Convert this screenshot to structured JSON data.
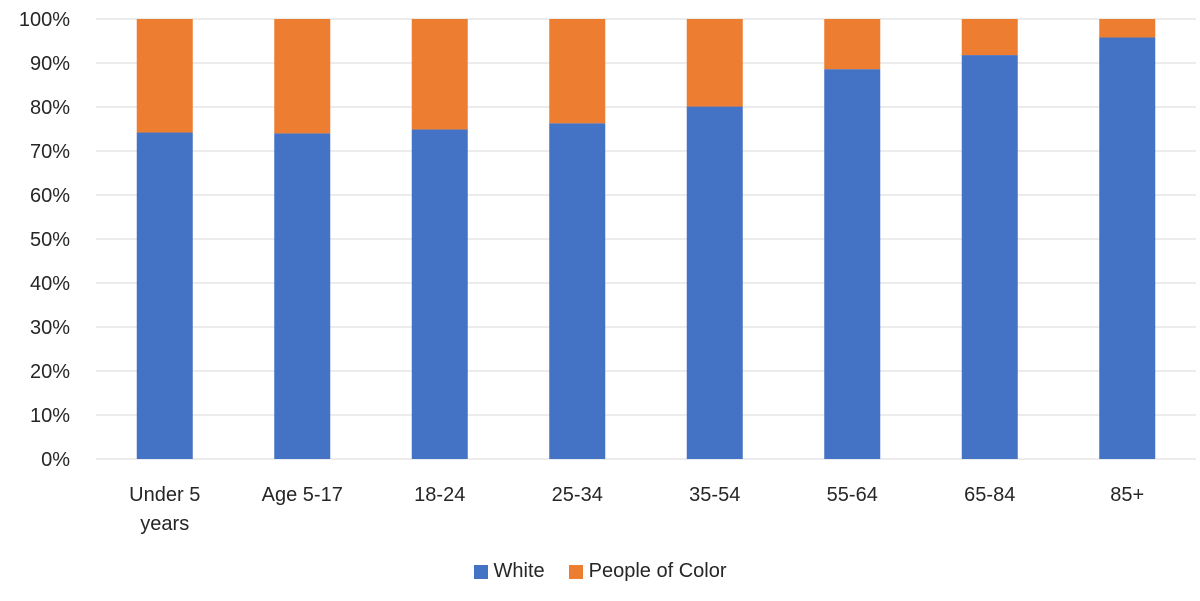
{
  "chart_data": {
    "type": "bar",
    "stacked": true,
    "categories": [
      [
        "Under 5",
        "years"
      ],
      [
        "Age 5-17"
      ],
      [
        "18-24"
      ],
      [
        "25-34"
      ],
      [
        "35-54"
      ],
      [
        "55-64"
      ],
      [
        "65-84"
      ],
      [
        "85+"
      ]
    ],
    "series": [
      {
        "name": "White",
        "color": "#4472C4",
        "values": [
          74.2,
          74.0,
          74.9,
          76.3,
          80.1,
          88.6,
          91.8,
          95.8
        ]
      },
      {
        "name": "People of Color",
        "color": "#ED7D31",
        "values": [
          25.8,
          26.0,
          25.1,
          23.7,
          19.9,
          11.4,
          8.2,
          4.2
        ]
      }
    ],
    "y_ticks": [
      "0%",
      "10%",
      "20%",
      "30%",
      "40%",
      "50%",
      "60%",
      "70%",
      "80%",
      "90%",
      "100%"
    ],
    "ylim": [
      0,
      100
    ],
    "grid": true,
    "legend_position": "bottom",
    "gridline_color": "#D9D9D9"
  }
}
